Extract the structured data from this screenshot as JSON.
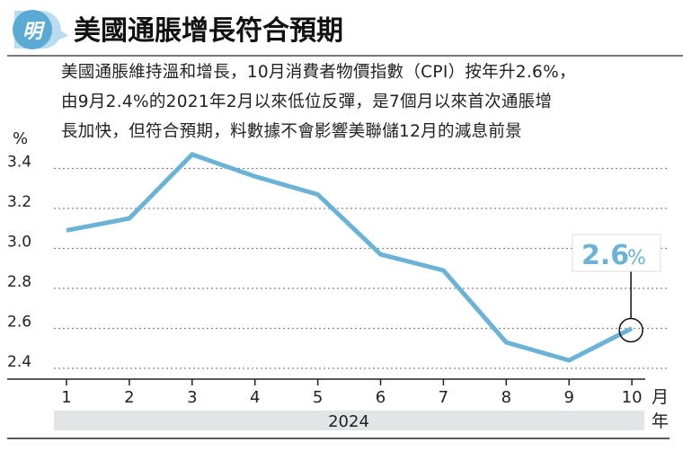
{
  "header": {
    "logo_text": "明",
    "title": "美國通脹增長符合預期"
  },
  "subtitle": [
    "美國通脹維持溫和增長，10月消費者物價指數（CPI）按年升2.6%，",
    "由9月2.4%的2021年2月以來低位反彈，是7個月以來首次通脹增",
    "長加快，但符合預期，料數據不會影響美聯儲12月的減息前景"
  ],
  "colors": {
    "line": "#6bb3d6",
    "logo": "#5aaad4",
    "band": "#e3e4e6"
  },
  "chart_data": {
    "type": "line",
    "title": "美國通脹增長符合預期",
    "ylabel": "%",
    "xlabel": "月",
    "x_group_label": "2024",
    "x_group_suffix": "年",
    "ylim": [
      2.35,
      3.5
    ],
    "yticks": [
      "3.4",
      "3.2",
      "3.0",
      "2.8",
      "2.6",
      "2.4"
    ],
    "ytick_values": [
      3.4,
      3.2,
      3.0,
      2.8,
      2.6,
      2.4
    ],
    "categories": [
      "1",
      "2",
      "3",
      "4",
      "5",
      "6",
      "7",
      "8",
      "9",
      "10"
    ],
    "values": [
      3.09,
      3.15,
      3.47,
      3.36,
      3.27,
      2.97,
      2.89,
      2.53,
      2.44,
      2.6
    ],
    "callout": {
      "value": "2.6",
      "unit": "%"
    },
    "grid": true
  }
}
